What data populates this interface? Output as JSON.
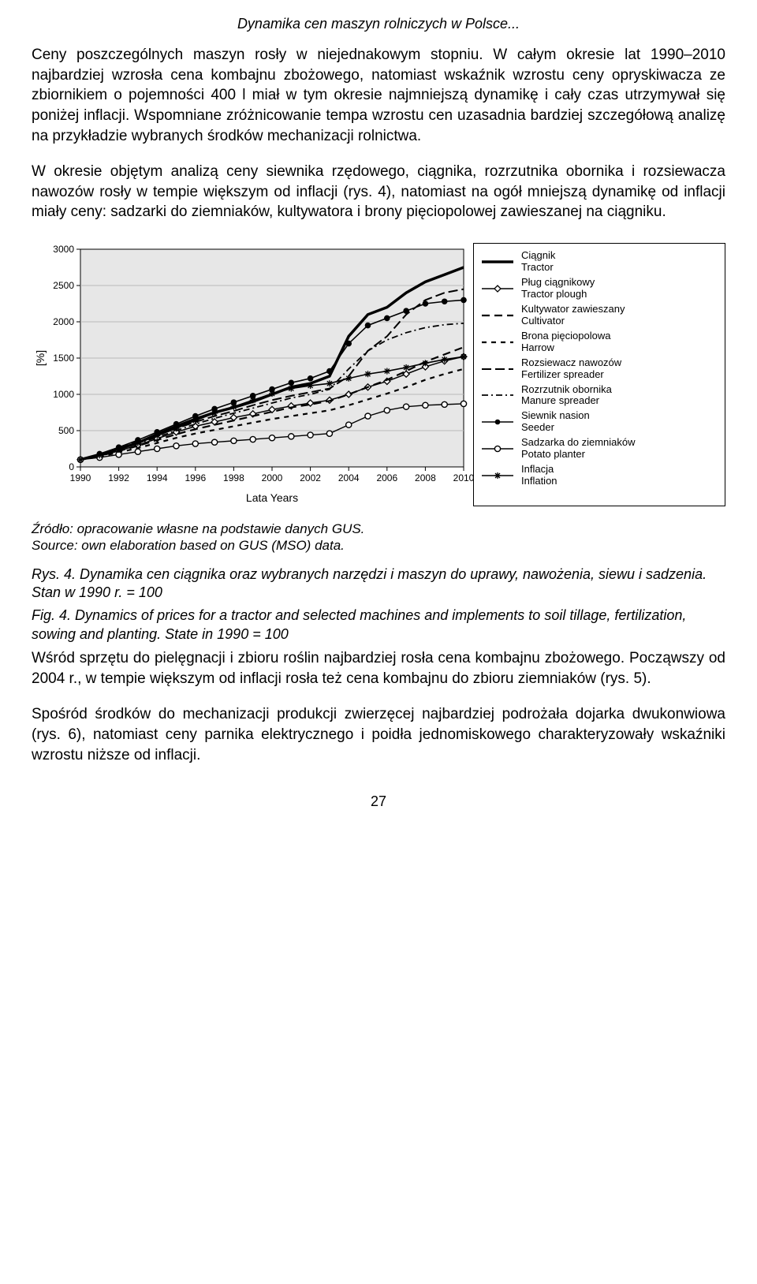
{
  "header": {
    "title": "Dynamika cen maszyn rolniczych w Polsce..."
  },
  "paragraphs": {
    "p1": "Ceny poszczególnych maszyn rosły w niejednakowym stopniu. W całym okresie lat 1990–2010 najbardziej wzrosła cena kombajnu zbożowego, natomiast wskaźnik wzrostu ceny opryskiwacza ze zbiornikiem o pojemności 400 l miał w tym okresie najmniejszą dynamikę i cały czas utrzymywał się poniżej inflacji. Wspomniane zróżnicowanie tempa wzrostu cen uzasadnia bardziej szczegółową analizę na przykładzie wybranych środków mechanizacji rolnictwa.",
    "p2": "W okresie objętym analizą ceny siewnika rzędowego, ciągnika, rozrzutnika obornika i rozsiewacza nawozów rosły w tempie większym od inflacji (rys. 4), natomiast na ogół mniejszą dynamikę od inflacji miały ceny: sadzarki do ziemniaków, kultywatora i brony pięciopolowej zawieszanej na ciągniku.",
    "p3": "Wśród sprzętu do pielęgnacji i zbioru roślin najbardziej rosła cena kombajnu zbożowego. Począwszy od 2004 r., w tempie większym od inflacji rosła też cena kombajnu do zbioru ziemniaków (rys. 5).",
    "p4": "Spośród środków do mechanizacji produkcji zwierzęcej najbardziej podrożała dojarka dwukonwiowa (rys. 6), natomiast ceny parnika elektrycznego i poidła jednomiskowego charakteryzowały wskaźniki wzrostu niższe od inflacji."
  },
  "chart": {
    "type": "line",
    "xlabel": "Lata  Years",
    "ylabel": "[%]",
    "ylim": [
      0,
      3000
    ],
    "ytick_step": 500,
    "xlim": [
      1990,
      2010
    ],
    "xtick_step": 2,
    "background": "#e7e7e7",
    "grid_color": "#b8b8b8",
    "axis_color": "#000000",
    "font_size_axis": 12,
    "font_size_label": 14,
    "years": [
      1990,
      1991,
      1992,
      1993,
      1994,
      1995,
      1996,
      1997,
      1998,
      1999,
      2000,
      2001,
      2002,
      2003,
      2004,
      2005,
      2006,
      2007,
      2008,
      2009,
      2010
    ],
    "series": [
      {
        "key": "tractor",
        "label": "Ciągnik",
        "sub": "Tractor",
        "color": "#000000",
        "width": 3.5,
        "dash": "none",
        "marker": "none",
        "values": [
          100,
          170,
          250,
          330,
          450,
          560,
          660,
          750,
          820,
          900,
          1000,
          1100,
          1150,
          1250,
          1800,
          2100,
          2200,
          2400,
          2550,
          2650,
          2750
        ]
      },
      {
        "key": "plough",
        "label": "Pług ciągnikowy",
        "sub": "Tractor plough",
        "color": "#000000",
        "width": 1.5,
        "dash": "none",
        "marker": "diamond-open",
        "values": [
          100,
          150,
          220,
          300,
          390,
          480,
          560,
          620,
          680,
          730,
          790,
          840,
          880,
          920,
          1000,
          1100,
          1180,
          1280,
          1380,
          1460,
          1520
        ]
      },
      {
        "key": "cultivator",
        "label": "Kultywator zawieszany",
        "sub": "Cultivator",
        "color": "#000000",
        "width": 2.2,
        "dash": "10 6",
        "marker": "none",
        "values": [
          100,
          150,
          220,
          290,
          370,
          450,
          520,
          580,
          640,
          700,
          760,
          820,
          860,
          910,
          1000,
          1100,
          1200,
          1320,
          1450,
          1550,
          1650
        ]
      },
      {
        "key": "harrow",
        "label": "Brona pięciopolowa",
        "sub": "Harrow",
        "color": "#000000",
        "width": 2.2,
        "dash": "6 6",
        "marker": "none",
        "values": [
          100,
          140,
          200,
          260,
          330,
          400,
          460,
          510,
          560,
          610,
          660,
          700,
          740,
          780,
          850,
          930,
          1010,
          1100,
          1200,
          1280,
          1350
        ]
      },
      {
        "key": "fertilizer",
        "label": "Rozsiewacz nawozów",
        "sub": "Fertilizer spreader",
        "color": "#000000",
        "width": 2,
        "dash": "12 5",
        "marker": "none",
        "values": [
          100,
          160,
          250,
          350,
          440,
          530,
          620,
          700,
          770,
          850,
          920,
          980,
          1030,
          1080,
          1250,
          1600,
          1800,
          2100,
          2300,
          2400,
          2450
        ]
      },
      {
        "key": "manure",
        "label": "Rozrzutnik obornika",
        "sub": "Manure spreader",
        "color": "#000000",
        "width": 1.8,
        "dash": "8 4 2 4",
        "marker": "none",
        "values": [
          100,
          160,
          240,
          320,
          410,
          500,
          590,
          670,
          740,
          810,
          880,
          950,
          1000,
          1070,
          1350,
          1600,
          1750,
          1850,
          1920,
          1960,
          1980
        ]
      },
      {
        "key": "seeder",
        "label": "Siewnik nasion",
        "sub": "Seeder",
        "color": "#000000",
        "width": 1.6,
        "dash": "none",
        "marker": "circle",
        "values": [
          100,
          180,
          270,
          370,
          480,
          590,
          700,
          800,
          890,
          980,
          1070,
          1160,
          1220,
          1320,
          1700,
          1950,
          2050,
          2150,
          2250,
          2280,
          2300
        ]
      },
      {
        "key": "potato",
        "label": "Sadzarka do ziemniaków",
        "sub": "Potato planter",
        "color": "#000000",
        "width": 1.4,
        "dash": "none",
        "marker": "circle-open",
        "values": [
          100,
          130,
          170,
          210,
          250,
          290,
          320,
          340,
          360,
          380,
          400,
          420,
          440,
          460,
          580,
          700,
          780,
          830,
          850,
          860,
          870
        ]
      },
      {
        "key": "inflation",
        "label": "Inflacja",
        "sub": "Inflation",
        "color": "#000000",
        "width": 1.6,
        "dash": "none",
        "marker": "star",
        "values": [
          100,
          160,
          240,
          330,
          430,
          530,
          640,
          740,
          830,
          920,
          1010,
          1080,
          1120,
          1150,
          1220,
          1280,
          1320,
          1370,
          1430,
          1480,
          1520
        ]
      }
    ]
  },
  "source": {
    "pl": "Źródło: opracowanie własne na podstawie danych GUS.",
    "en": "Source: own elaboration based on GUS (MSO) data."
  },
  "caption": {
    "rys_prefix": "Rys. 4.",
    "rys_text": "Dynamika cen ciągnika oraz wybranych narzędzi i maszyn do uprawy, nawożenia, siewu i sadzenia. Stan w 1990 r. = 100",
    "fig_prefix": "Fig. 4.",
    "fig_text": "Dynamics of prices for a tractor and selected machines and implements to soil tillage, fertilization, sowing and planting. State in 1990 = 100"
  },
  "page_number": "27"
}
